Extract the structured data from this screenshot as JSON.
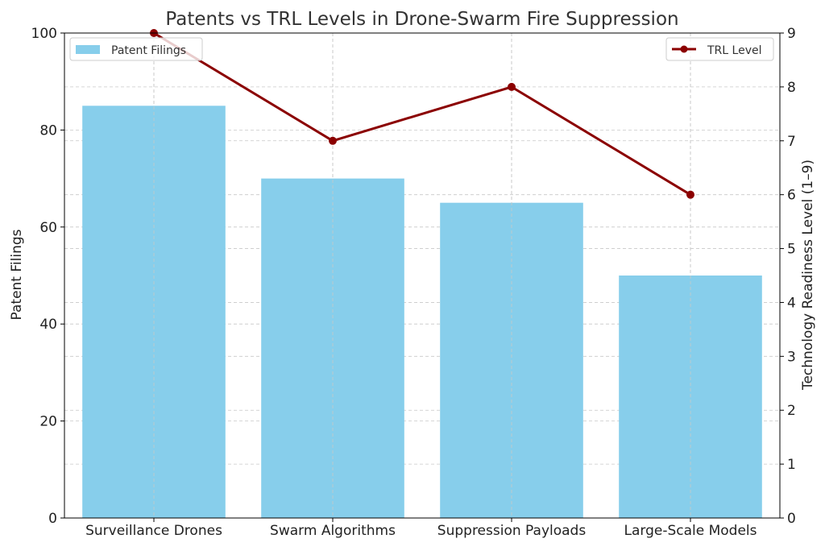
{
  "chart_data": {
    "type": "bar",
    "title": "Patents vs TRL Levels in Drone-Swarm Fire Suppression",
    "categories": [
      "Surveillance Drones",
      "Swarm Algorithms",
      "Suppression Payloads",
      "Large-Scale Models"
    ],
    "series": [
      {
        "name": "Patent Filings",
        "type": "bar",
        "axis": "left",
        "values": [
          85,
          70,
          65,
          50
        ],
        "color": "#87ceeb"
      },
      {
        "name": "TRL Level",
        "type": "line",
        "axis": "right",
        "values": [
          9,
          7,
          8,
          6
        ],
        "color": "#8b0000"
      }
    ],
    "ylabel": "Patent Filings",
    "ylim": [
      0,
      100
    ],
    "yticks": [
      0,
      20,
      40,
      60,
      80,
      100
    ],
    "y2label": "Technology Readiness Level (1–9)",
    "y2lim": [
      0,
      9
    ],
    "y2ticks": [
      0,
      1,
      2,
      3,
      4,
      5,
      6,
      7,
      8,
      9
    ],
    "grid": true,
    "legend_bar_placement": "top-left",
    "legend_line_placement": "top-right"
  }
}
